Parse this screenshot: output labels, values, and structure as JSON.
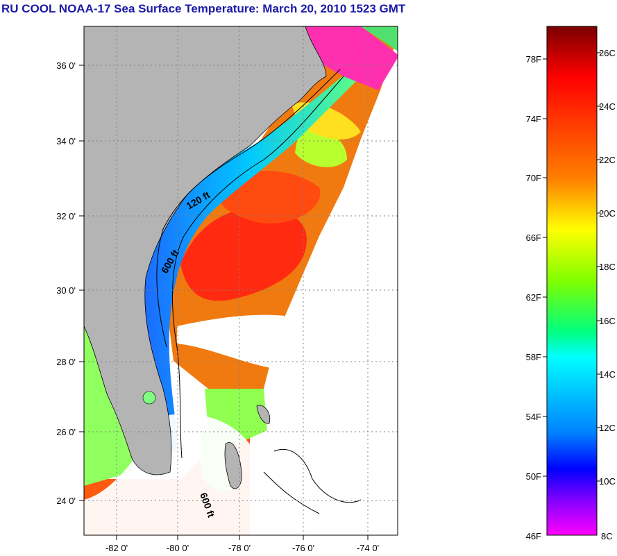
{
  "title": "RU COOL  NOAA-17  Sea Surface Temperature:  March 20, 2010 1523 GMT",
  "map": {
    "lat_labels": [
      "36 0'",
      "34 0'",
      "32 0'",
      "30 0'",
      "28 0'",
      "26 0'",
      "24 0'"
    ],
    "lon_labels": [
      "-82 0'",
      "-80 0'",
      "-78 0'",
      "-76 0'",
      "-74 0'"
    ],
    "contours": [
      "120 ft",
      "600 ft",
      "600 ft"
    ],
    "colors": {
      "land": "#b4b4b4",
      "cloud": "#ffffff"
    }
  },
  "colorbar": {
    "fahrenheit": [
      "78F",
      "74F",
      "70F",
      "66F",
      "62F",
      "58F",
      "54F",
      "50F",
      "46F"
    ],
    "celsius": [
      "26C",
      "24C",
      "22C",
      "20C",
      "18C",
      "16C",
      "14C",
      "12C",
      "10C",
      "8C"
    ],
    "gradient": [
      "#800000",
      "#ff0000",
      "#ff8000",
      "#ffff00",
      "#80ff00",
      "#00ff80",
      "#00ffff",
      "#0080ff",
      "#0000ff",
      "#8000ff",
      "#ff00ff"
    ]
  }
}
